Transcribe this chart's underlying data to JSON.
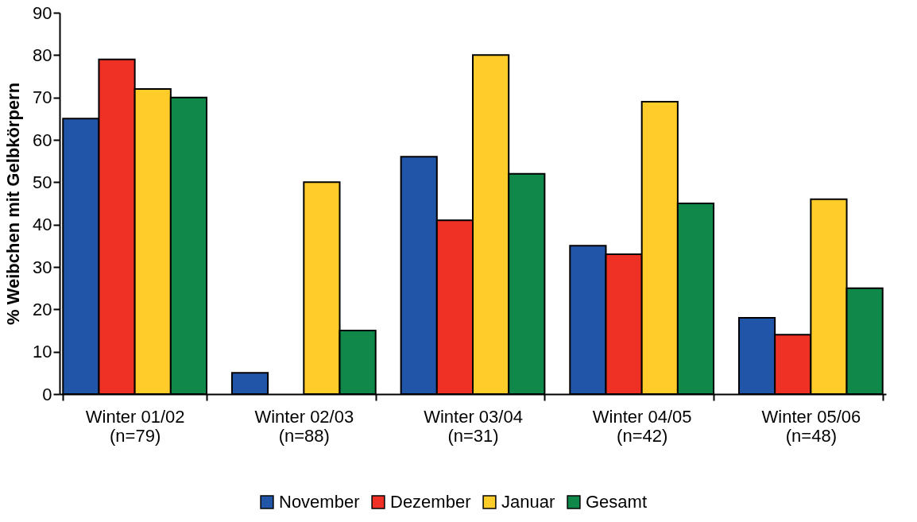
{
  "chart_data": {
    "type": "bar",
    "ylabel": "% Weibchen mit Gelbkörpern",
    "categories": [
      "Winter 01/02\n(n=79)",
      "Winter 02/03\n(n=88)",
      "Winter 03/04\n(n=31)",
      "Winter 04/05\n(n=42)",
      "Winter 05/06\n(n=48)"
    ],
    "series": [
      {
        "name": "November",
        "color": "#2155a8",
        "values": [
          65,
          5,
          56,
          35,
          18
        ]
      },
      {
        "name": "Dezember",
        "color": "#ee3124",
        "values": [
          79,
          null,
          41,
          33,
          14
        ]
      },
      {
        "name": "Januar",
        "color": "#ffcc29",
        "values": [
          72,
          50,
          80,
          69,
          46
        ]
      },
      {
        "name": "Gesamt",
        "color": "#10884a",
        "values": [
          70,
          15,
          52,
          45,
          25
        ]
      }
    ],
    "ylim": [
      0,
      90
    ],
    "yticks": [
      0,
      10,
      20,
      30,
      40,
      50,
      60,
      70,
      80,
      90
    ],
    "grid": false,
    "legend": "bottom"
  }
}
